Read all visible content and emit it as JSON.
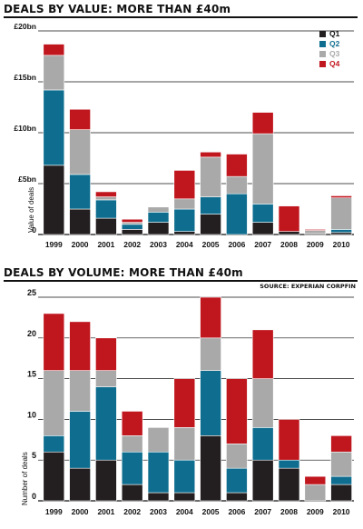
{
  "source": "SOURCE: EXPERIAN CORPFIN",
  "chart_data": [
    {
      "type": "bar",
      "stacked": true,
      "title": "DEALS BY VALUE: MORE THAN £40m",
      "ylabel": "Value of deals",
      "ylim": [
        0,
        20
      ],
      "yticks": [
        0,
        5,
        10,
        15,
        20
      ],
      "yticklabels": [
        "0",
        "£5bn",
        "£10bn",
        "£15bn",
        "£20bn"
      ],
      "grid": true,
      "legend_position": "top-right",
      "categories": [
        "1999",
        "2000",
        "2001",
        "2002",
        "2003",
        "2004",
        "2005",
        "2006",
        "2007",
        "2008",
        "2009",
        "2010"
      ],
      "series": [
        {
          "name": "Q1",
          "color": "#231f20",
          "values": [
            6.8,
            2.5,
            1.6,
            0.5,
            1.2,
            0.3,
            2.0,
            0.0,
            1.2,
            0.3,
            0.1,
            0.2
          ]
        },
        {
          "name": "Q2",
          "color": "#0f6e8f",
          "values": [
            7.4,
            3.4,
            1.8,
            0.5,
            1.0,
            2.2,
            1.7,
            4.0,
            1.8,
            0.0,
            0.0,
            0.3
          ]
        },
        {
          "name": "Q3",
          "color": "#a9a9a9",
          "values": [
            3.4,
            4.4,
            0.3,
            0.2,
            0.5,
            1.0,
            3.9,
            1.7,
            6.9,
            0.0,
            0.3,
            3.1
          ]
        },
        {
          "name": "Q4",
          "color": "#c0161e",
          "values": [
            1.1,
            2.0,
            0.5,
            0.3,
            0.0,
            2.8,
            0.5,
            2.2,
            2.1,
            2.5,
            0.1,
            0.2
          ]
        }
      ]
    },
    {
      "type": "bar",
      "stacked": true,
      "title": "DEALS BY VOLUME: MORE THAN £40m",
      "ylabel": "Number of deals",
      "ylim": [
        0,
        25
      ],
      "yticks": [
        0,
        5,
        10,
        15,
        20,
        25
      ],
      "yticklabels": [
        "0",
        "5",
        "10",
        "15",
        "20",
        "25"
      ],
      "grid": true,
      "categories": [
        "1999",
        "2000",
        "2001",
        "2002",
        "2003",
        "2004",
        "2005",
        "2006",
        "2007",
        "2008",
        "2009",
        "2010"
      ],
      "series": [
        {
          "name": "Q1",
          "color": "#231f20",
          "values": [
            6,
            4,
            5,
            2,
            1,
            1,
            8,
            1,
            5,
            4,
            0,
            2
          ]
        },
        {
          "name": "Q2",
          "color": "#0f6e8f",
          "values": [
            2,
            7,
            9,
            4,
            5,
            4,
            8,
            3,
            4,
            1,
            0,
            1
          ]
        },
        {
          "name": "Q3",
          "color": "#a9a9a9",
          "values": [
            8,
            5,
            2,
            2,
            3,
            4,
            4,
            3,
            6,
            0,
            2,
            3
          ]
        },
        {
          "name": "Q4",
          "color": "#c0161e",
          "values": [
            7,
            6,
            4,
            3,
            0,
            6,
            5,
            8,
            6,
            5,
            1,
            2
          ]
        }
      ]
    }
  ]
}
